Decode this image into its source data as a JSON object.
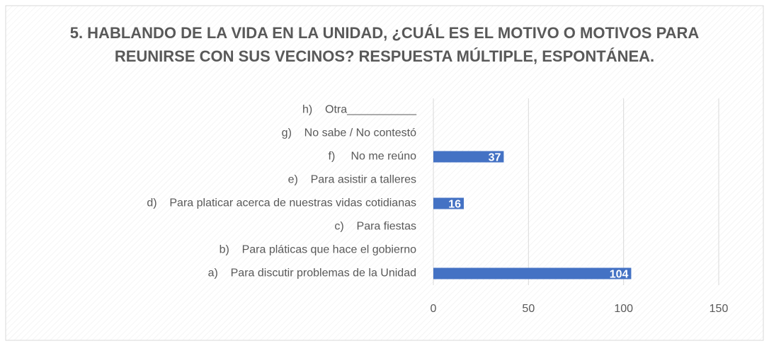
{
  "chart_data": {
    "type": "bar",
    "orientation": "horizontal",
    "title": "5. HABLANDO DE LA VIDA EN LA UNIDAD, ¿CUÁL ES EL MOTIVO O MOTIVOS PARA REUNIRSE CON SUS VECINOS? RESPUESTA MÚLTIPLE, ESPONTÁNEA.",
    "categories": [
      "a)    Para discutir problemas de la Unidad",
      "b)    Para pláticas que hace el gobierno",
      "c)    Para fiestas",
      "d)    Para platicar acerca de nuestras vidas cotidianas",
      "e)    Para asistir a talleres",
      "f)     No me reúno",
      "g)    No sabe / No contestó",
      "h)    Otra___________"
    ],
    "values": [
      104,
      null,
      null,
      16,
      null,
      37,
      null,
      null
    ],
    "color": "#4472c4",
    "xlim": [
      0,
      150
    ],
    "xticks": [
      0,
      50,
      100,
      150
    ],
    "grid": true
  }
}
